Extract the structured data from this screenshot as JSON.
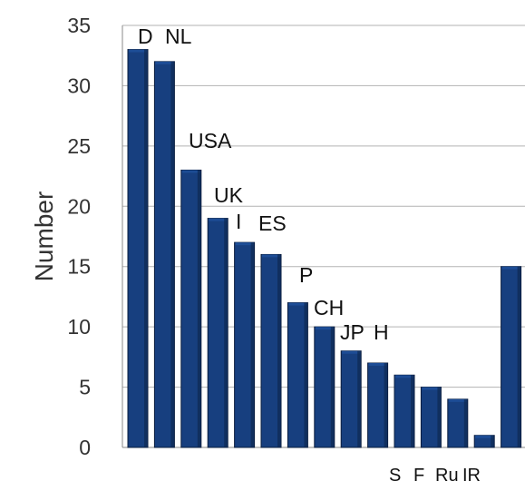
{
  "chart_data": {
    "type": "bar",
    "categories": [
      "D",
      "NL",
      "USA",
      "UK",
      "I",
      "ES",
      "P",
      "CH",
      "JP",
      "H",
      "S",
      "F",
      "Ru",
      "IR",
      ""
    ],
    "values": [
      33,
      32,
      23,
      19,
      17,
      16,
      12,
      10,
      8,
      7,
      6,
      5,
      4,
      1,
      15
    ],
    "title": "",
    "xlabel": "",
    "ylabel": "Number",
    "ylim": [
      0,
      35
    ],
    "yticks": [
      0,
      5,
      10,
      15,
      20,
      25,
      30,
      35
    ],
    "grid": true,
    "legend": "none",
    "colors": {
      "bar": "#173f7f",
      "bar_top": "#1d4d96",
      "bar_side": "#0d264f",
      "grid": "#b3b3b3",
      "axis": "#8a8a8a"
    }
  }
}
